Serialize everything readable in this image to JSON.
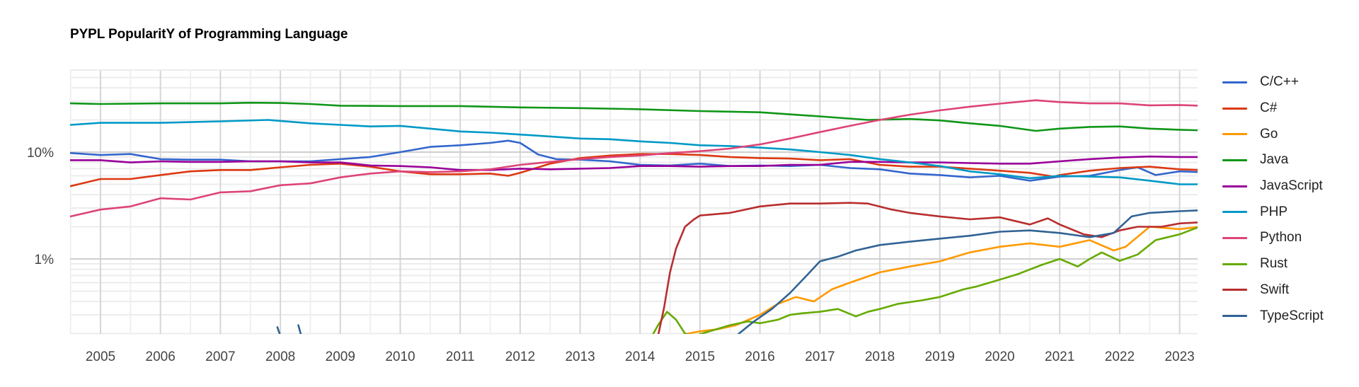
{
  "title": "PYPL PopularitY of Programming Language",
  "chart_data": {
    "type": "line",
    "title": "PYPL PopularitY of Programming Language",
    "xlabel": "",
    "ylabel": "",
    "y_scale": "log",
    "ylim": [
      0.19,
      58
    ],
    "xlim": [
      2004.5,
      2023.33
    ],
    "y_ticks": [
      {
        "value": 10,
        "label": "10%"
      },
      {
        "value": 1,
        "label": "1%"
      }
    ],
    "x_ticks": [
      "2005",
      "2006",
      "2007",
      "2008",
      "2009",
      "2010",
      "2011",
      "2012",
      "2013",
      "2014",
      "2015",
      "2016",
      "2017",
      "2018",
      "2019",
      "2020",
      "2021",
      "2022",
      "2023"
    ],
    "grid": true,
    "legend_position": "right",
    "series": [
      {
        "name": "C/C++",
        "color": "#3366CC",
        "x": [
          2004.5,
          2005.0,
          2005.5,
          2006.0,
          2006.5,
          2007.0,
          2007.5,
          2008.0,
          2008.5,
          2009.0,
          2009.5,
          2010.0,
          2010.5,
          2011.0,
          2011.5,
          2011.8,
          2012.0,
          2012.3,
          2012.6,
          2013.0,
          2013.5,
          2014.0,
          2014.5,
          2015.0,
          2015.5,
          2016.0,
          2016.5,
          2017.0,
          2017.5,
          2018.0,
          2018.5,
          2019.0,
          2019.5,
          2020.0,
          2020.5,
          2021.0,
          2021.5,
          2022.0,
          2022.3,
          2022.6,
          2023.0,
          2023.33
        ],
        "values": [
          9.8,
          9.4,
          9.6,
          8.6,
          8.5,
          8.5,
          8.2,
          8.2,
          8.2,
          8.6,
          9.0,
          10.0,
          11.2,
          11.6,
          12.2,
          12.8,
          12.2,
          9.5,
          8.6,
          8.5,
          8.2,
          7.6,
          7.5,
          7.8,
          7.4,
          7.5,
          7.4,
          7.6,
          7.1,
          6.9,
          6.3,
          6.1,
          5.8,
          6.0,
          5.4,
          5.9,
          6.0,
          6.8,
          7.2,
          6.1,
          6.6,
          6.5
        ]
      },
      {
        "name": "C#",
        "color": "#DC3912",
        "x": [
          2004.5,
          2005.0,
          2005.5,
          2006.0,
          2006.5,
          2007.0,
          2007.5,
          2008.0,
          2008.5,
          2009.0,
          2009.5,
          2010.0,
          2010.5,
          2011.0,
          2011.5,
          2011.8,
          2012.0,
          2012.5,
          2013.0,
          2013.5,
          2014.0,
          2014.5,
          2015.0,
          2015.5,
          2016.0,
          2016.5,
          2017.0,
          2017.5,
          2018.0,
          2018.5,
          2019.0,
          2019.5,
          2020.0,
          2020.5,
          2020.9,
          2021.0,
          2021.5,
          2022.0,
          2022.5,
          2023.0,
          2023.33
        ],
        "values": [
          4.8,
          5.6,
          5.6,
          6.1,
          6.6,
          6.8,
          6.8,
          7.2,
          7.6,
          7.8,
          7.3,
          6.6,
          6.2,
          6.2,
          6.3,
          6.0,
          6.4,
          7.8,
          8.8,
          9.3,
          9.6,
          9.6,
          9.4,
          9.0,
          8.8,
          8.7,
          8.4,
          8.6,
          7.6,
          7.3,
          7.3,
          7.0,
          6.7,
          6.4,
          5.9,
          6.1,
          6.7,
          7.1,
          7.3,
          6.9,
          6.8
        ]
      },
      {
        "name": "Go",
        "color": "#FF9900",
        "x": [
          2014.6,
          2014.8,
          2015.0,
          2015.3,
          2015.6,
          2016.0,
          2016.3,
          2016.6,
          2016.9,
          2017.2,
          2017.5,
          2018.0,
          2018.5,
          2019.0,
          2019.5,
          2020.0,
          2020.5,
          2021.0,
          2021.5,
          2021.9,
          2022.1,
          2022.5,
          2023.0,
          2023.33
        ],
        "values": [
          0.19,
          0.2,
          0.21,
          0.22,
          0.24,
          0.3,
          0.38,
          0.44,
          0.4,
          0.52,
          0.6,
          0.75,
          0.85,
          0.95,
          1.15,
          1.3,
          1.4,
          1.3,
          1.5,
          1.2,
          1.3,
          2.0,
          1.9,
          2.0
        ]
      },
      {
        "name": "Java",
        "color": "#109618",
        "x": [
          2004.5,
          2005.0,
          2006.0,
          2007.0,
          2007.5,
          2008.0,
          2008.5,
          2009.0,
          2010.0,
          2011.0,
          2012.0,
          2013.0,
          2014.0,
          2015.0,
          2016.0,
          2017.0,
          2017.8,
          2018.5,
          2019.0,
          2019.5,
          2020.0,
          2020.6,
          2021.0,
          2021.5,
          2022.0,
          2022.5,
          2023.0,
          2023.33
        ],
        "values": [
          28.6,
          28.2,
          28.6,
          28.6,
          29.0,
          28.8,
          28.2,
          27.2,
          27.0,
          27.0,
          26.2,
          25.8,
          25.2,
          24.2,
          23.6,
          21.6,
          20.0,
          20.4,
          19.8,
          18.6,
          17.6,
          15.8,
          16.6,
          17.2,
          17.4,
          16.6,
          16.2,
          16.0
        ]
      },
      {
        "name": "JavaScript",
        "color": "#990099",
        "x": [
          2004.5,
          2005.0,
          2005.5,
          2006.0,
          2006.5,
          2007.0,
          2007.5,
          2008.0,
          2008.5,
          2009.0,
          2009.5,
          2010.0,
          2010.5,
          2011.0,
          2011.5,
          2012.0,
          2012.5,
          2013.0,
          2013.5,
          2014.0,
          2014.5,
          2015.0,
          2015.5,
          2016.0,
          2016.5,
          2017.0,
          2017.5,
          2018.0,
          2018.5,
          2019.0,
          2019.5,
          2020.0,
          2020.5,
          2021.0,
          2021.5,
          2022.0,
          2022.5,
          2023.0,
          2023.33
        ],
        "values": [
          8.4,
          8.4,
          8.0,
          8.2,
          8.1,
          8.1,
          8.2,
          8.2,
          8.0,
          8.0,
          7.5,
          7.4,
          7.2,
          6.8,
          6.8,
          7.0,
          6.9,
          7.0,
          7.1,
          7.4,
          7.4,
          7.3,
          7.4,
          7.4,
          7.6,
          7.6,
          8.1,
          8.1,
          8.0,
          8.0,
          7.9,
          7.8,
          7.8,
          8.2,
          8.6,
          8.9,
          9.1,
          9.0,
          9.0
        ]
      },
      {
        "name": "PHP",
        "color": "#0099C6",
        "x": [
          2004.5,
          2005.0,
          2006.0,
          2007.0,
          2007.8,
          2008.5,
          2009.0,
          2009.5,
          2010.0,
          2010.5,
          2011.0,
          2011.5,
          2012.0,
          2012.5,
          2013.0,
          2013.5,
          2014.0,
          2014.5,
          2015.0,
          2015.5,
          2016.0,
          2016.5,
          2017.0,
          2017.5,
          2018.0,
          2018.5,
          2019.0,
          2019.5,
          2020.0,
          2020.5,
          2021.0,
          2021.5,
          2022.0,
          2022.5,
          2023.0,
          2023.33
        ],
        "values": [
          18.0,
          18.8,
          18.8,
          19.4,
          20.0,
          18.6,
          18.0,
          17.4,
          17.6,
          16.6,
          15.6,
          15.2,
          14.6,
          14.0,
          13.4,
          13.2,
          12.6,
          12.2,
          11.6,
          11.4,
          11.0,
          10.6,
          10.0,
          9.4,
          8.6,
          8.0,
          7.4,
          6.6,
          6.2,
          5.7,
          6.0,
          5.9,
          5.8,
          5.4,
          5.0,
          5.0
        ]
      },
      {
        "name": "Python",
        "color": "#DD4477",
        "x": [
          2004.5,
          2005.0,
          2005.5,
          2006.0,
          2006.5,
          2007.0,
          2007.5,
          2008.0,
          2008.5,
          2009.0,
          2009.5,
          2010.0,
          2010.5,
          2011.0,
          2011.5,
          2012.0,
          2012.5,
          2013.0,
          2013.5,
          2014.0,
          2014.5,
          2015.0,
          2015.5,
          2016.0,
          2016.5,
          2017.0,
          2017.5,
          2018.0,
          2018.5,
          2019.0,
          2019.5,
          2020.0,
          2020.6,
          2021.0,
          2021.5,
          2022.0,
          2022.5,
          2023.0,
          2023.33
        ],
        "values": [
          2.5,
          2.9,
          3.1,
          3.7,
          3.6,
          4.2,
          4.3,
          4.9,
          5.1,
          5.8,
          6.3,
          6.6,
          6.5,
          6.6,
          6.9,
          7.6,
          8.1,
          8.6,
          9.0,
          9.3,
          9.8,
          10.2,
          10.8,
          11.8,
          13.4,
          15.4,
          17.6,
          20.0,
          22.4,
          24.6,
          26.6,
          28.4,
          30.6,
          29.4,
          28.6,
          28.6,
          27.4,
          27.6,
          27.2
        ]
      },
      {
        "name": "Rust",
        "color": "#66AA00",
        "x": [
          2014.2,
          2014.3,
          2014.45,
          2014.6,
          2014.75,
          2014.9,
          2015.5,
          2015.8,
          2016.0,
          2016.3,
          2016.5,
          2016.7,
          2017.0,
          2017.3,
          2017.6,
          2017.8,
          2018.0,
          2018.3,
          2018.7,
          2019.0,
          2019.4,
          2019.6,
          2020.0,
          2020.3,
          2020.7,
          2021.0,
          2021.3,
          2021.5,
          2021.7,
          2022.0,
          2022.3,
          2022.6,
          2023.0,
          2023.33
        ],
        "values": [
          0.19,
          0.24,
          0.32,
          0.27,
          0.2,
          0.19,
          0.24,
          0.26,
          0.25,
          0.27,
          0.3,
          0.31,
          0.32,
          0.34,
          0.29,
          0.32,
          0.34,
          0.38,
          0.41,
          0.44,
          0.52,
          0.55,
          0.64,
          0.72,
          0.88,
          1.0,
          0.85,
          1.0,
          1.15,
          0.96,
          1.1,
          1.5,
          1.7,
          2.0
        ]
      },
      {
        "name": "Swift",
        "color": "#B82E2E",
        "x": [
          2014.3,
          2014.4,
          2014.5,
          2014.6,
          2014.75,
          2014.9,
          2015.0,
          2015.5,
          2016.0,
          2016.5,
          2017.0,
          2017.5,
          2017.8,
          2018.2,
          2018.5,
          2019.0,
          2019.5,
          2020.0,
          2020.5,
          2020.8,
          2021.0,
          2021.4,
          2021.7,
          2022.0,
          2022.3,
          2022.7,
          2023.0,
          2023.33
        ],
        "values": [
          0.19,
          0.35,
          0.75,
          1.25,
          2.0,
          2.35,
          2.55,
          2.7,
          3.1,
          3.3,
          3.3,
          3.35,
          3.3,
          2.9,
          2.7,
          2.5,
          2.35,
          2.45,
          2.1,
          2.4,
          2.1,
          1.7,
          1.6,
          1.85,
          2.0,
          2.0,
          2.15,
          2.2
        ]
      },
      {
        "name": "TypeScript",
        "color": "#316395",
        "x": [
          2007.9,
          2007.95,
          2008.0,
          2008.2,
          2008.3,
          2008.35,
          2015.6,
          2015.9,
          2016.2,
          2016.5,
          2016.8,
          2017.0,
          2017.3,
          2017.6,
          2018.0,
          2018.5,
          2019.0,
          2019.5,
          2020.0,
          2020.5,
          2021.0,
          2021.5,
          2021.9,
          2022.2,
          2022.5,
          2023.0,
          2023.33
        ],
        "values": [
          null,
          0.23,
          0.19,
          null,
          0.24,
          0.19,
          0.19,
          0.26,
          0.34,
          0.48,
          0.72,
          0.95,
          1.05,
          1.2,
          1.35,
          1.45,
          1.55,
          1.65,
          1.8,
          1.85,
          1.75,
          1.6,
          1.75,
          2.5,
          2.7,
          2.8,
          2.85
        ]
      }
    ]
  }
}
